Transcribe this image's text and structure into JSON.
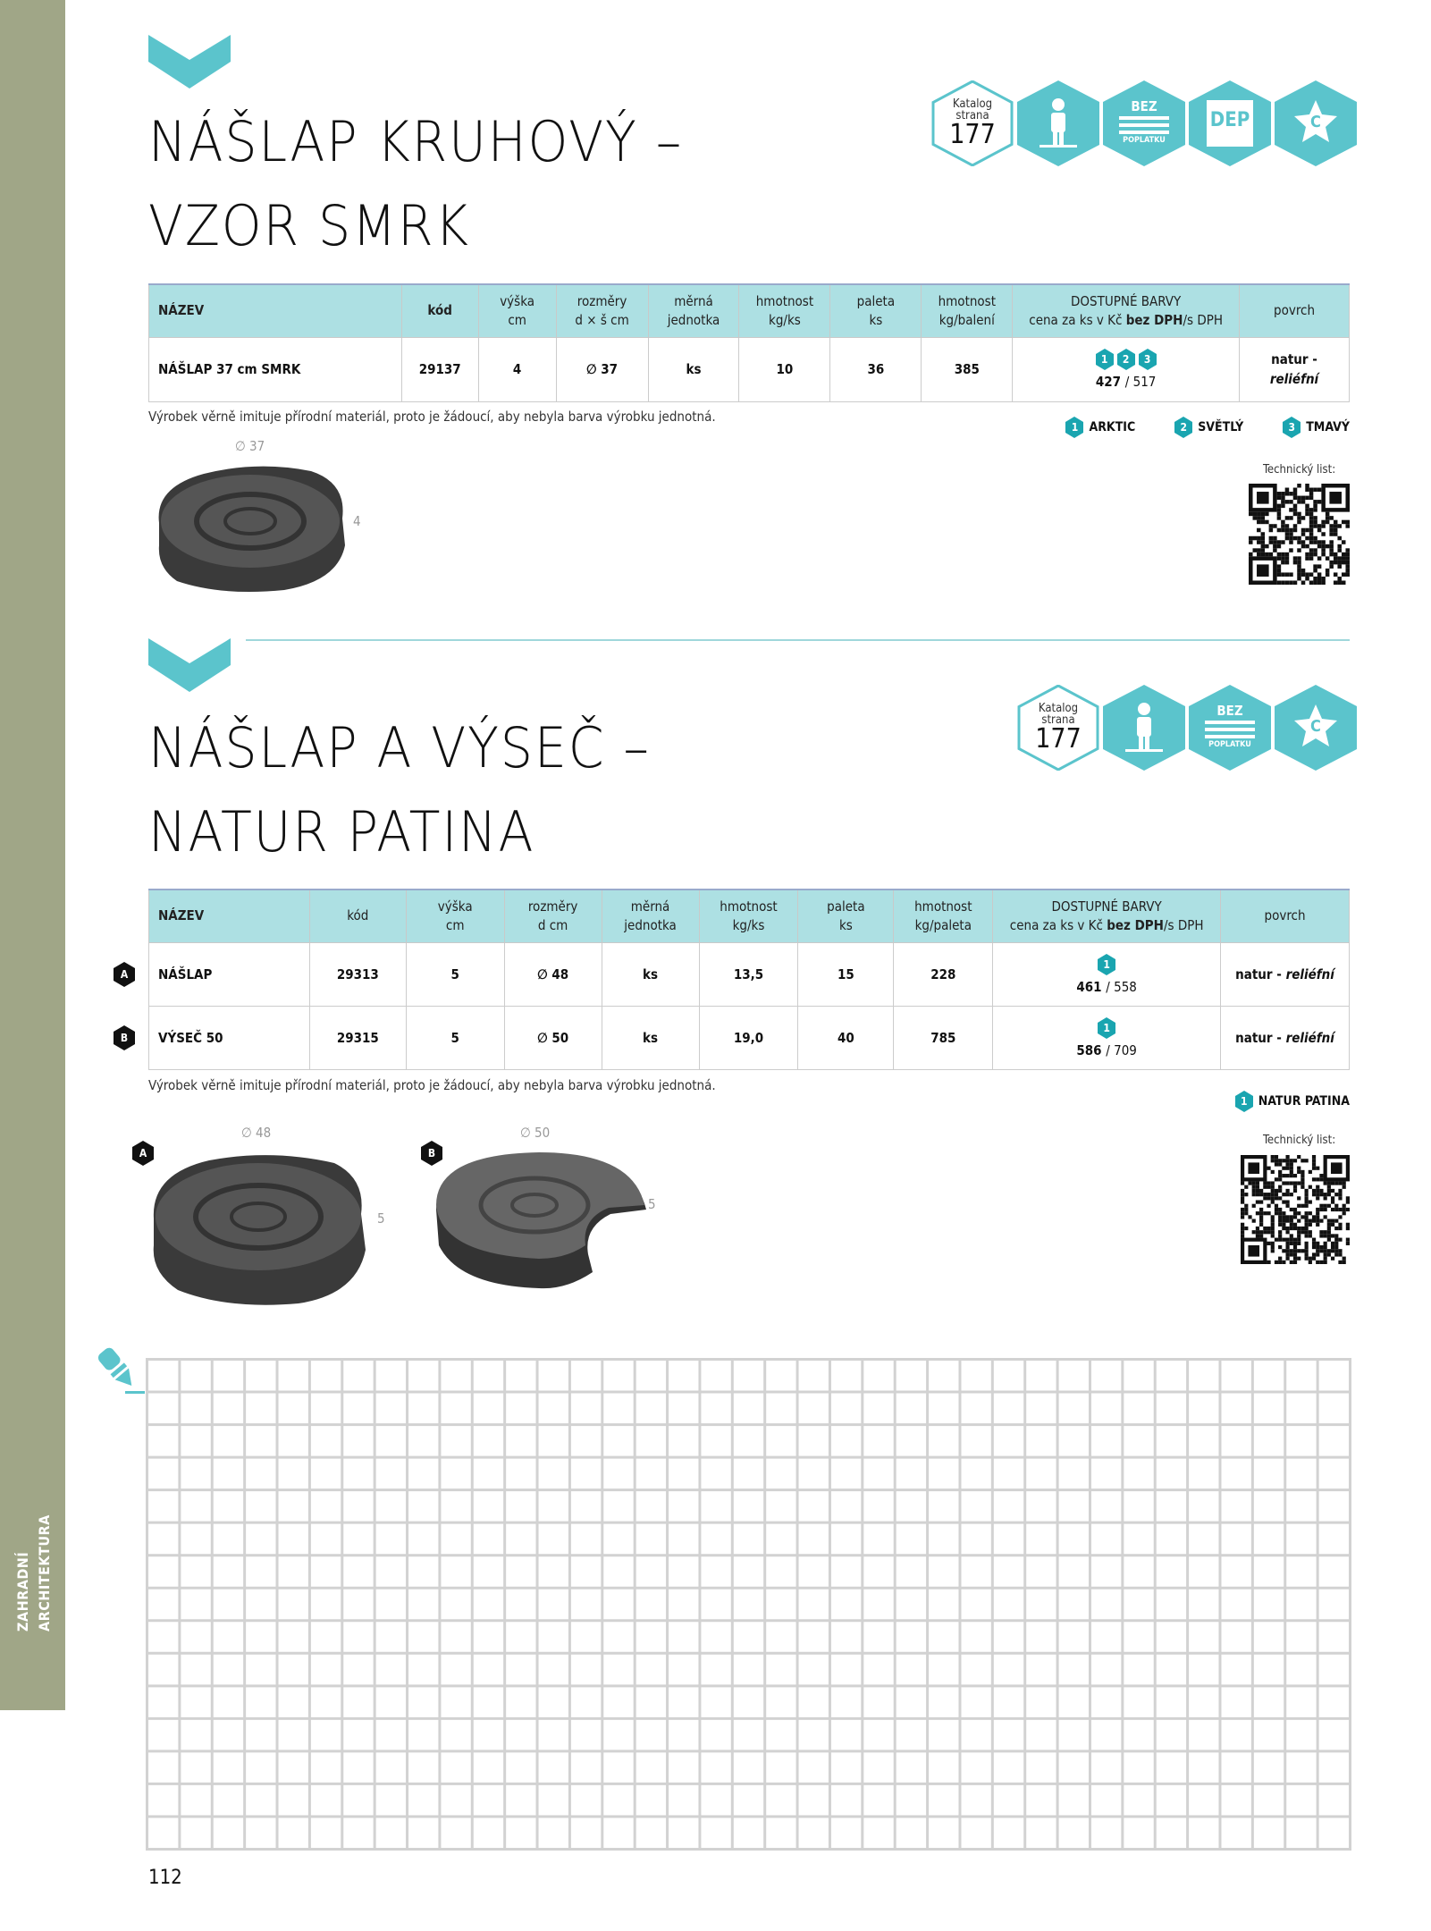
{
  "sidebar": {
    "section": "ZAHRADNÍ ARCHITEKTURA",
    "color": "#a0a687"
  },
  "accent": "#5bc4cc",
  "number_badge_color": "#1aa5b0",
  "sections": [
    {
      "title_line1": "NÁŠLAP KRUHOVÝ –",
      "title_line2": "VZOR SMRK",
      "icons": {
        "catalog_label1": "Katalog",
        "catalog_label2": "strana",
        "catalog_page": "177",
        "bez": "BEZ",
        "poplatku": "POPLATKU",
        "dep": "DEP",
        "badge": "C",
        "list": [
          "catalog-page",
          "human-height-icon",
          "no-pallet-fee-icon",
          "dep-icon",
          "star-c-icon"
        ]
      },
      "headers": [
        "NÁZEV",
        "kód",
        "výška\ncm",
        "rozměry\nd × š cm",
        "měrná\njednotka",
        "hmotnost\nkg/ks",
        "paleta\nks",
        "hmotnost\nkg/balení",
        "DOSTUPNÉ BARVY",
        "povrch"
      ],
      "price_header": {
        "pre": "cena za ks v Kč ",
        "bold": "bez DPH",
        "post": "/s DPH"
      },
      "rows": [
        {
          "name": "NÁŠLAP  37 cm SMRK",
          "code": "29137",
          "height": "4",
          "size": "∅ 37",
          "unit": "ks",
          "weight": "10",
          "pallet": "36",
          "weight_pack": "385",
          "colors": [
            "1",
            "2",
            "3"
          ],
          "price_net": "427",
          "price_gross": "517",
          "surface1": "natur -",
          "surface2": "reliéfní"
        }
      ],
      "note": "Výrobek věrně imituje přírodní materiál, proto je žádoucí, aby nebyla barva výrobku jednotná.",
      "legend": [
        {
          "n": "1",
          "label": "ARKTIC"
        },
        {
          "n": "2",
          "label": "SVĚTLÝ"
        },
        {
          "n": "3",
          "label": "TMAVÝ"
        }
      ],
      "image": {
        "diameter": "∅ 37",
        "height": "4"
      },
      "tech_label": "Technický list:"
    },
    {
      "title_line1": "NÁŠLAP A VÝSEČ –",
      "title_line2": "NATUR PATINA",
      "icons": {
        "catalog_label1": "Katalog",
        "catalog_label2": "strana",
        "catalog_page": "177",
        "bez": "BEZ",
        "poplatku": "POPLATKU",
        "badge": "C",
        "list": [
          "catalog-page",
          "human-height-icon",
          "no-pallet-fee-icon",
          "star-c-icon"
        ]
      },
      "headers": [
        "NÁZEV",
        "kód",
        "výška\ncm",
        "rozměry\nd cm",
        "měrná\njednotka",
        "hmotnost\nkg/ks",
        "paleta\nks",
        "hmotnost\nkg/paleta",
        "DOSTUPNÉ BARVY",
        "povrch"
      ],
      "price_header": {
        "pre": "cena za ks v Kč ",
        "bold": "bez DPH",
        "post": "/s DPH"
      },
      "rows": [
        {
          "marker": "A",
          "name": "NÁŠLAP",
          "code": "29313",
          "height": "5",
          "size": "∅ 48",
          "unit": "ks",
          "weight": "13,5",
          "pallet": "15",
          "weight_pack": "228",
          "colors": [
            "1"
          ],
          "price_net": "461",
          "price_gross": "558",
          "surface1": "natur - ",
          "surface2": "reliéfní"
        },
        {
          "marker": "B",
          "name": "VÝSEČ 50",
          "code": "29315",
          "height": "5",
          "size": "∅ 50",
          "unit": "ks",
          "weight": "19,0",
          "pallet": "40",
          "weight_pack": "785",
          "colors": [
            "1"
          ],
          "price_net": "586",
          "price_gross": "709",
          "surface1": "natur - ",
          "surface2": "reliéfní"
        }
      ],
      "note": "Výrobek věrně imituje přírodní materiál, proto je žádoucí, aby nebyla barva výrobku jednotná.",
      "legend": [
        {
          "n": "1",
          "label": "NATUR PATINA"
        }
      ],
      "images": [
        {
          "marker": "A",
          "diameter": "∅ 48",
          "height": "5"
        },
        {
          "marker": "B",
          "diameter": "∅ 50",
          "height": "5"
        }
      ],
      "tech_label": "Technický list:"
    }
  ],
  "page_number": "112"
}
